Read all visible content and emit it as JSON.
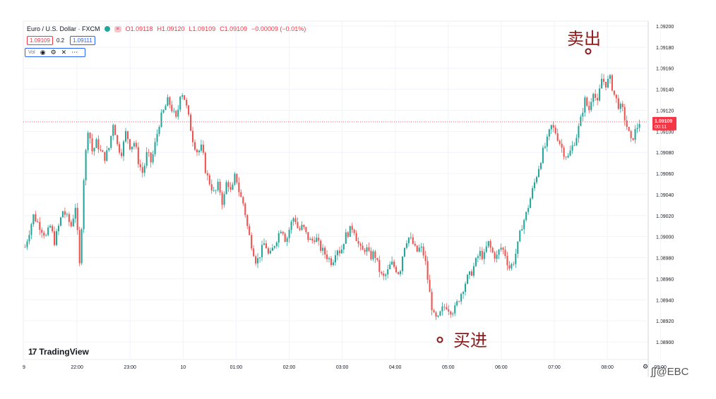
{
  "header": {
    "symbol": "Euro / U.S. Dollar · FXCM",
    "badge": "≡",
    "o": "O1.09118",
    "h": "H1.09120",
    "l": "L1.09109",
    "c": "C1.09109",
    "chg": "−0.00009 (−0.01%)",
    "bid": "1.09109",
    "spread": "0.2",
    "ask": "1.09111"
  },
  "volume_toolbar": {
    "label": "Vol",
    "icons": [
      "eye-icon",
      "gear-icon",
      "close-icon",
      "more-icon"
    ]
  },
  "colors": {
    "up": "#26a69a",
    "down": "#ef5350",
    "price_label": "#f23645",
    "annotation": "#8b1a1a"
  },
  "brand": {
    "logo": "TradingView",
    "logo_mark": "17",
    "watermark": "ʃ∫@EBC"
  },
  "last_price": {
    "price": "1.09109",
    "timer": "00:11"
  },
  "annotations": {
    "sell": {
      "text": "卖出",
      "price": 1.09176
    },
    "buy": {
      "text": "买进",
      "price": 1.08902
    }
  },
  "chart_data": {
    "type": "candlestick",
    "title": "",
    "xlabel": "",
    "ylabel": "",
    "ylim": [
      1.0888,
      1.0921
    ],
    "yticks": [
      "1.09200",
      "1.09180",
      "1.09160",
      "1.09140",
      "1.09120",
      "1.09100",
      "1.09080",
      "1.09060",
      "1.09040",
      "1.09020",
      "1.09000",
      "1.08980",
      "1.08960",
      "1.08940",
      "1.08920",
      "1.08900"
    ],
    "xticks": [
      "9",
      "22:00",
      "23:00",
      "10",
      "01:00",
      "02:00",
      "03:00",
      "04:00",
      "05:00",
      "06:00",
      "07:00",
      "08:00",
      "09:00"
    ],
    "close_path": [
      [
        0,
        1.0899
      ],
      [
        2,
        1.0902
      ],
      [
        5,
        1.09
      ],
      [
        6,
        1.0901
      ],
      [
        7,
        1.08995
      ],
      [
        9,
        1.09025
      ],
      [
        11,
        1.0901
      ],
      [
        12,
        1.0903
      ],
      [
        13,
        1.0897
      ],
      [
        14,
        1.0906
      ],
      [
        15,
        1.09105
      ],
      [
        16,
        1.0908
      ],
      [
        17,
        1.0909
      ],
      [
        18,
        1.0908
      ],
      [
        19,
        1.09075
      ],
      [
        20,
        1.09085
      ],
      [
        21,
        1.0911
      ],
      [
        22,
        1.09085
      ],
      [
        23,
        1.0908
      ],
      [
        24,
        1.091
      ],
      [
        25,
        1.09085
      ],
      [
        26,
        1.0909
      ],
      [
        27,
        1.0907
      ],
      [
        28,
        1.0906
      ],
      [
        29,
        1.0908
      ],
      [
        30,
        1.0907
      ],
      [
        31,
        1.0909
      ],
      [
        32,
        1.0911
      ],
      [
        33,
        1.0912
      ],
      [
        34,
        1.0913
      ],
      [
        35,
        1.0912
      ],
      [
        36,
        1.0911
      ],
      [
        37,
        1.0914
      ],
      [
        38,
        1.0913
      ],
      [
        39,
        1.0911
      ],
      [
        40,
        1.0909
      ],
      [
        41,
        1.0908
      ],
      [
        42,
        1.09085
      ],
      [
        43,
        1.0906
      ],
      [
        44,
        1.0905
      ],
      [
        45,
        1.0904
      ],
      [
        46,
        1.0905
      ],
      [
        47,
        1.0903
      ],
      [
        48,
        1.09055
      ],
      [
        49,
        1.0904
      ],
      [
        50,
        1.0906
      ],
      [
        51,
        1.0904
      ],
      [
        52,
        1.0903
      ],
      [
        53,
        1.09005
      ],
      [
        54,
        1.0899
      ],
      [
        55,
        1.08975
      ],
      [
        56,
        1.08985
      ],
      [
        57,
        1.08995
      ],
      [
        58,
        1.0898
      ],
      [
        59,
        1.0899
      ],
      [
        60,
        1.09
      ],
      [
        61,
        1.0901
      ],
      [
        62,
        1.08995
      ],
      [
        63,
        1.0901
      ],
      [
        64,
        1.0902
      ],
      [
        65,
        1.09005
      ],
      [
        66,
        1.0901
      ],
      [
        67,
        1.09
      ],
      [
        68,
        1.08995
      ],
      [
        69,
        1.09
      ],
      [
        70,
        1.0899
      ],
      [
        71,
        1.08985
      ],
      [
        72,
        1.0898
      ],
      [
        73,
        1.08975
      ],
      [
        74,
        1.0899
      ],
      [
        75,
        1.08985
      ],
      [
        76,
        1.09
      ],
      [
        77,
        1.09005
      ],
      [
        78,
        1.0901
      ],
      [
        79,
        1.08995
      ],
      [
        80,
        1.08985
      ],
      [
        81,
        1.0899
      ],
      [
        82,
        1.0898
      ],
      [
        83,
        1.08985
      ],
      [
        84,
        1.0897
      ],
      [
        85,
        1.0896
      ],
      [
        86,
        1.08965
      ],
      [
        87,
        1.08975
      ],
      [
        88,
        1.0897
      ],
      [
        89,
        1.08965
      ],
      [
        90,
        1.0899
      ],
      [
        91,
        1.09
      ],
      [
        92,
        1.08995
      ],
      [
        93,
        1.08985
      ],
      [
        94,
        1.0899
      ],
      [
        95,
        1.0898
      ],
      [
        96,
        1.0895
      ],
      [
        97,
        1.08925
      ],
      [
        98,
        1.0892
      ],
      [
        99,
        1.0893
      ],
      [
        100,
        1.08935
      ],
      [
        101,
        1.0893
      ],
      [
        102,
        1.0893
      ],
      [
        103,
        1.0894
      ],
      [
        104,
        1.0895
      ],
      [
        105,
        1.0896
      ],
      [
        106,
        1.08965
      ],
      [
        107,
        1.08975
      ],
      [
        108,
        1.08985
      ],
      [
        109,
        1.0898
      ],
      [
        110,
        1.08995
      ],
      [
        111,
        1.08985
      ],
      [
        112,
        1.0898
      ],
      [
        113,
        1.0899
      ],
      [
        114,
        1.08985
      ],
      [
        115,
        1.0897
      ],
      [
        116,
        1.08975
      ],
      [
        117,
        1.0899
      ],
      [
        118,
        1.0901
      ],
      [
        119,
        1.0902
      ],
      [
        120,
        1.09035
      ],
      [
        121,
        1.0905
      ],
      [
        122,
        1.09065
      ],
      [
        123,
        1.0908
      ],
      [
        124,
        1.0909
      ],
      [
        125,
        1.09105
      ],
      [
        126,
        1.091
      ],
      [
        127,
        1.0909
      ],
      [
        128,
        1.0908
      ],
      [
        129,
        1.09075
      ],
      [
        130,
        1.09085
      ],
      [
        131,
        1.09095
      ],
      [
        132,
        1.0911
      ],
      [
        133,
        1.0913
      ],
      [
        134,
        1.0912
      ],
      [
        135,
        1.0914
      ],
      [
        136,
        1.09125
      ],
      [
        137,
        1.0915
      ],
      [
        138,
        1.09145
      ],
      [
        139,
        1.0915
      ],
      [
        140,
        1.09135
      ],
      [
        141,
        1.09125
      ],
      [
        142,
        1.0912
      ],
      [
        143,
        1.09105
      ],
      [
        144,
        1.0909
      ],
      [
        145,
        1.091
      ],
      [
        146,
        1.09109
      ]
    ]
  }
}
